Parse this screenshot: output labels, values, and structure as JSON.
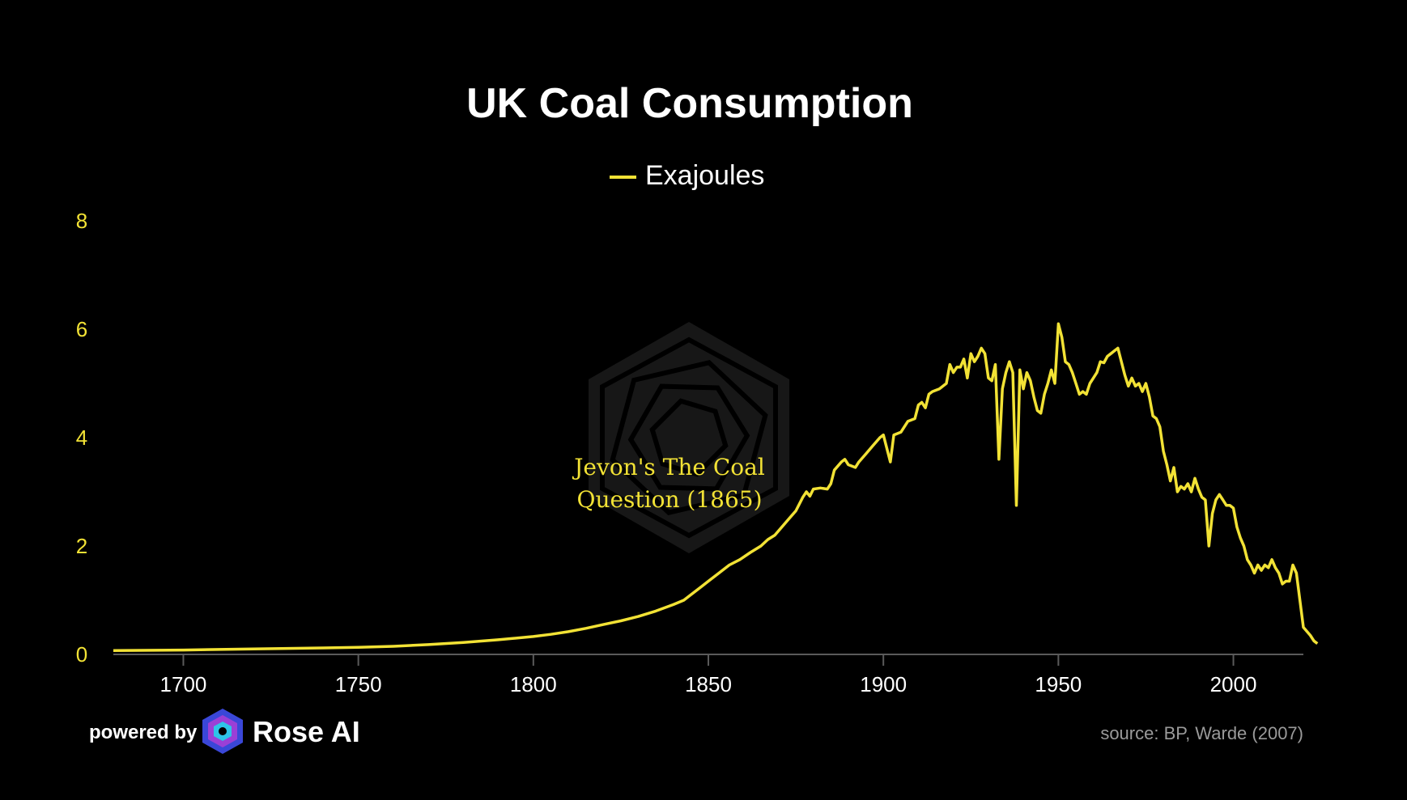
{
  "chart_data": {
    "type": "line",
    "title": "UK Coal Consumption",
    "xlabel": "",
    "ylabel": "",
    "xlim": [
      1680,
      2020
    ],
    "ylim": [
      0,
      8
    ],
    "xticks": [
      1700,
      1750,
      1800,
      1850,
      1900,
      1950,
      2000
    ],
    "yticks": [
      0,
      2,
      4,
      6,
      8
    ],
    "grid": false,
    "legend_position": "top-center",
    "series": [
      {
        "name": "Exajoules",
        "color": "#f2e235",
        "points": [
          [
            1680,
            0.07
          ],
          [
            1700,
            0.08
          ],
          [
            1720,
            0.1
          ],
          [
            1740,
            0.12
          ],
          [
            1750,
            0.13
          ],
          [
            1760,
            0.15
          ],
          [
            1770,
            0.18
          ],
          [
            1780,
            0.22
          ],
          [
            1790,
            0.27
          ],
          [
            1800,
            0.33
          ],
          [
            1805,
            0.37
          ],
          [
            1810,
            0.42
          ],
          [
            1815,
            0.48
          ],
          [
            1820,
            0.55
          ],
          [
            1825,
            0.62
          ],
          [
            1830,
            0.7
          ],
          [
            1835,
            0.8
          ],
          [
            1840,
            0.92
          ],
          [
            1843,
            1.0
          ],
          [
            1845,
            1.1
          ],
          [
            1848,
            1.25
          ],
          [
            1850,
            1.35
          ],
          [
            1853,
            1.5
          ],
          [
            1856,
            1.65
          ],
          [
            1859,
            1.75
          ],
          [
            1862,
            1.88
          ],
          [
            1865,
            2.0
          ],
          [
            1867,
            2.12
          ],
          [
            1869,
            2.2
          ],
          [
            1871,
            2.35
          ],
          [
            1873,
            2.5
          ],
          [
            1875,
            2.65
          ],
          [
            1877,
            2.9
          ],
          [
            1878,
            3.0
          ],
          [
            1879,
            2.92
          ],
          [
            1880,
            3.05
          ],
          [
            1882,
            3.07
          ],
          [
            1884,
            3.05
          ],
          [
            1885,
            3.15
          ],
          [
            1886,
            3.4
          ],
          [
            1888,
            3.55
          ],
          [
            1889,
            3.6
          ],
          [
            1890,
            3.5
          ],
          [
            1892,
            3.45
          ],
          [
            1893,
            3.55
          ],
          [
            1895,
            3.7
          ],
          [
            1897,
            3.85
          ],
          [
            1899,
            4.0
          ],
          [
            1900,
            4.05
          ],
          [
            1902,
            3.55
          ],
          [
            1903,
            4.05
          ],
          [
            1905,
            4.1
          ],
          [
            1907,
            4.3
          ],
          [
            1909,
            4.35
          ],
          [
            1910,
            4.6
          ],
          [
            1911,
            4.65
          ],
          [
            1912,
            4.55
          ],
          [
            1913,
            4.8
          ],
          [
            1914,
            4.85
          ],
          [
            1916,
            4.9
          ],
          [
            1918,
            5.0
          ],
          [
            1919,
            5.35
          ],
          [
            1920,
            5.2
          ],
          [
            1921,
            5.3
          ],
          [
            1922,
            5.3
          ],
          [
            1923,
            5.45
          ],
          [
            1924,
            5.1
          ],
          [
            1925,
            5.55
          ],
          [
            1926,
            5.4
          ],
          [
            1927,
            5.5
          ],
          [
            1928,
            5.65
          ],
          [
            1929,
            5.55
          ],
          [
            1930,
            5.1
          ],
          [
            1931,
            5.05
          ],
          [
            1932,
            5.35
          ],
          [
            1933,
            3.6
          ],
          [
            1934,
            4.9
          ],
          [
            1935,
            5.2
          ],
          [
            1936,
            5.4
          ],
          [
            1937,
            5.2
          ],
          [
            1938,
            2.75
          ],
          [
            1939,
            5.25
          ],
          [
            1940,
            4.9
          ],
          [
            1941,
            5.2
          ],
          [
            1942,
            5.05
          ],
          [
            1943,
            4.75
          ],
          [
            1944,
            4.5
          ],
          [
            1945,
            4.45
          ],
          [
            1946,
            4.8
          ],
          [
            1947,
            5.0
          ],
          [
            1948,
            5.25
          ],
          [
            1949,
            5.0
          ],
          [
            1950,
            6.1
          ],
          [
            1951,
            5.85
          ],
          [
            1952,
            5.4
          ],
          [
            1953,
            5.35
          ],
          [
            1954,
            5.2
          ],
          [
            1955,
            5.0
          ],
          [
            1956,
            4.8
          ],
          [
            1957,
            4.85
          ],
          [
            1958,
            4.8
          ],
          [
            1959,
            5.0
          ],
          [
            1960,
            5.1
          ],
          [
            1961,
            5.2
          ],
          [
            1962,
            5.4
          ],
          [
            1963,
            5.38
          ],
          [
            1964,
            5.5
          ],
          [
            1965,
            5.55
          ],
          [
            1966,
            5.6
          ],
          [
            1967,
            5.65
          ],
          [
            1968,
            5.4
          ],
          [
            1969,
            5.15
          ],
          [
            1970,
            4.95
          ],
          [
            1971,
            5.1
          ],
          [
            1972,
            4.95
          ],
          [
            1973,
            5.0
          ],
          [
            1974,
            4.85
          ],
          [
            1975,
            5.0
          ],
          [
            1976,
            4.75
          ],
          [
            1977,
            4.4
          ],
          [
            1978,
            4.35
          ],
          [
            1979,
            4.2
          ],
          [
            1980,
            3.75
          ],
          [
            1981,
            3.5
          ],
          [
            1982,
            3.2
          ],
          [
            1983,
            3.45
          ],
          [
            1984,
            3.0
          ],
          [
            1985,
            3.1
          ],
          [
            1986,
            3.05
          ],
          [
            1987,
            3.15
          ],
          [
            1988,
            3.0
          ],
          [
            1989,
            3.25
          ],
          [
            1990,
            3.05
          ],
          [
            1991,
            2.9
          ],
          [
            1992,
            2.85
          ],
          [
            1993,
            2.0
          ],
          [
            1994,
            2.6
          ],
          [
            1995,
            2.85
          ],
          [
            1996,
            2.95
          ],
          [
            1997,
            2.85
          ],
          [
            1998,
            2.75
          ],
          [
            1999,
            2.75
          ],
          [
            2000,
            2.7
          ],
          [
            2001,
            2.35
          ],
          [
            2002,
            2.15
          ],
          [
            2003,
            2.0
          ],
          [
            2004,
            1.75
          ],
          [
            2005,
            1.65
          ],
          [
            2006,
            1.5
          ],
          [
            2007,
            1.65
          ],
          [
            2008,
            1.55
          ],
          [
            2009,
            1.65
          ],
          [
            2010,
            1.6
          ],
          [
            2011,
            1.75
          ],
          [
            2012,
            1.6
          ],
          [
            2013,
            1.5
          ],
          [
            2014,
            1.3
          ],
          [
            2015,
            1.35
          ],
          [
            2016,
            1.35
          ],
          [
            2017,
            1.65
          ],
          [
            2018,
            1.5
          ],
          [
            2019,
            1.0
          ],
          [
            2020,
            0.5
          ],
          [
            2022,
            0.35
          ],
          [
            2023,
            0.25
          ],
          [
            2024,
            0.2
          ]
        ]
      }
    ],
    "annotations": [
      {
        "lines": [
          "Jevon's The Coal",
          "Question (1865)"
        ],
        "x": 1865
      }
    ]
  },
  "footer": {
    "source": "source: BP, Warde (2007)",
    "powered_by": "powered by",
    "brand": "Rose AI"
  },
  "colors": {
    "background": "#000000",
    "series": "#f2e235",
    "axis": "#5a5a5a"
  },
  "icons": {
    "brand_logo": "rose-ai-logo-icon",
    "watermark": "rose-ai-watermark-icon"
  }
}
